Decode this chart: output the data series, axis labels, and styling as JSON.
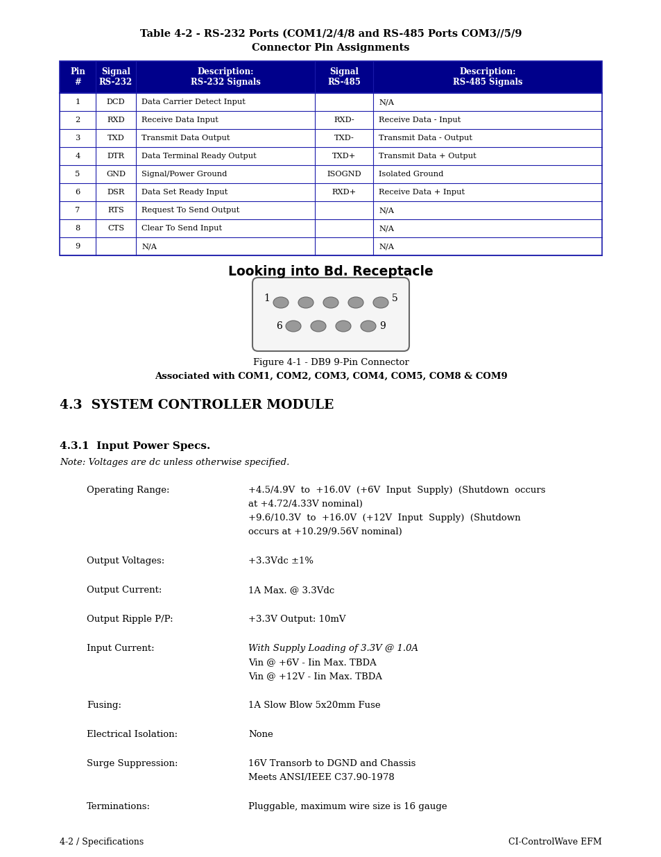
{
  "bg_color": "#ffffff",
  "title_line1": "Table 4-2 - RS-232 Ports (COM1/2/4/8 and RS-485 Ports COM3//5/9",
  "title_line2": "Connector Pin Assignments",
  "table_header": [
    "Pin\n#",
    "Signal\nRS-232",
    "Description:\nRS-232 Signals",
    "Signal\nRS-485",
    "Description:\nRS-485 Signals"
  ],
  "table_rows": [
    [
      "1",
      "DCD",
      "Data Carrier Detect Input",
      "",
      "N/A"
    ],
    [
      "2",
      "RXD",
      "Receive Data Input",
      "RXD-",
      "Receive Data - Input"
    ],
    [
      "3",
      "TXD",
      "Transmit Data Output",
      "TXD-",
      "Transmit Data - Output"
    ],
    [
      "4",
      "DTR",
      "Data Terminal Ready Output",
      "TXD+",
      "Transmit Data + Output"
    ],
    [
      "5",
      "GND",
      "Signal/Power Ground",
      "ISOGND",
      "Isolated Ground"
    ],
    [
      "6",
      "DSR",
      "Data Set Ready Input",
      "RXD+",
      "Receive Data + Input"
    ],
    [
      "7",
      "RTS",
      "Request To Send Output",
      "",
      "N/A"
    ],
    [
      "8",
      "CTS",
      "Clear To Send Input",
      "",
      "N/A"
    ],
    [
      "9",
      "",
      "N/A",
      "",
      "N/A"
    ]
  ],
  "header_bg": "#00008B",
  "header_fg": "#ffffff",
  "connector_title": "Looking into Bd. Receptacle",
  "figure_caption_line1": "Figure 4-1 - DB9 9-Pin Connector",
  "figure_caption_line2": "Associated with COM1, COM2, COM3, COM4, COM5, COM8 & COM9",
  "section_title": "4.3  SYSTEM CONTROLLER MODULE",
  "subsection_title": "4.3.1  Input Power Specs.",
  "note_text": "Note: Voltages are dc unless otherwise specified.",
  "specs": [
    {
      "label": "Operating Range:",
      "lines": [
        {
          "text": "+4.5/4.9V  to  +16.0V  (+6V  Input  Supply)  (Shutdown  occurs",
          "italic": false
        },
        {
          "text": "at +4.72/4.33V nominal)",
          "italic": false
        },
        {
          "text": "+9.6/10.3V  to  +16.0V  (+12V  Input  Supply)  (Shutdown",
          "italic": false
        },
        {
          "text": "occurs at +10.29/9.56V nominal)",
          "italic": false
        }
      ]
    },
    {
      "label": "Output Voltages:",
      "lines": [
        {
          "text": "+3.3Vdc ±1%",
          "italic": false
        }
      ]
    },
    {
      "label": "Output Current:",
      "lines": [
        {
          "text": "1A Max. @ 3.3Vdc",
          "italic": false
        }
      ]
    },
    {
      "label": "Output Ripple P/P:",
      "lines": [
        {
          "text": "+3.3V Output: 10mV",
          "italic": false
        }
      ]
    },
    {
      "label": "Input Current:",
      "lines": [
        {
          "text": "With Supply Loading of 3.3V @ 1.0A",
          "italic": true
        },
        {
          "text": "Vin @ +6V - Iin Max. TBDA",
          "italic": false
        },
        {
          "text": "Vin @ +12V - Iin Max. TBDA",
          "italic": false
        }
      ]
    },
    {
      "label": "Fusing:",
      "lines": [
        {
          "text": "1A Slow Blow 5x20mm Fuse",
          "italic": false
        }
      ]
    },
    {
      "label": "Electrical Isolation:",
      "lines": [
        {
          "text": "None",
          "italic": false
        }
      ]
    },
    {
      "label": "Surge Suppression:",
      "lines": [
        {
          "text": "16V Transorb to DGND and Chassis",
          "italic": false
        },
        {
          "text": "Meets ANSI/IEEE C37.90-1978",
          "italic": false
        }
      ]
    },
    {
      "label": "Terminations:",
      "lines": [
        {
          "text": "Pluggable, maximum wire size is 16 gauge",
          "italic": false
        }
      ]
    }
  ],
  "footer_left": "4-2 / Specifications",
  "footer_right": "CI-ControlWave EFM"
}
